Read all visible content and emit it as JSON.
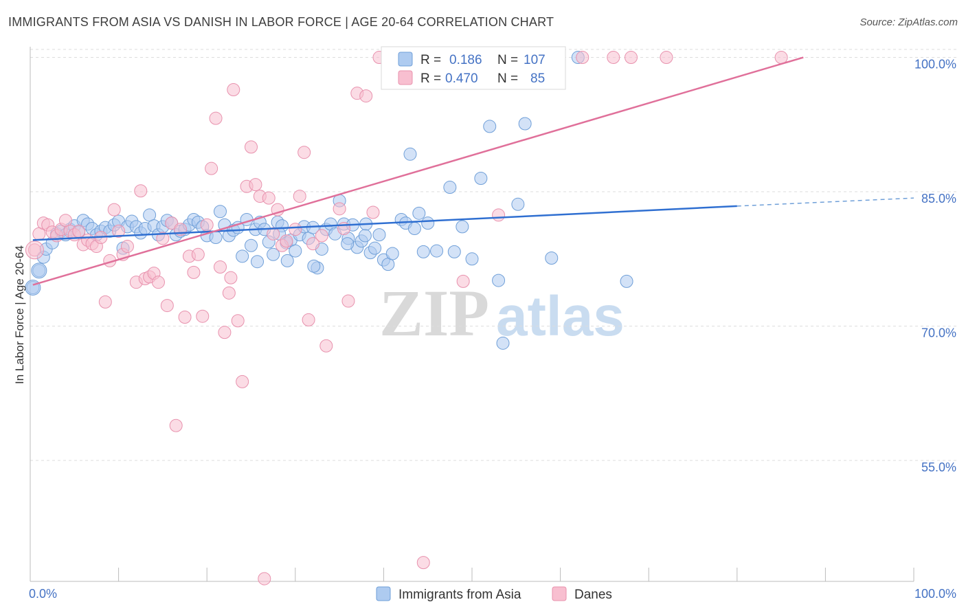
{
  "title": "IMMIGRANTS FROM ASIA VS DANISH IN LABOR FORCE | AGE 20-64 CORRELATION CHART",
  "source": "Source: ZipAtlas.com",
  "watermark": {
    "zip": "ZIP",
    "atlas": "atlas"
  },
  "legend": {
    "r_label": "R =",
    "n_label": "N =",
    "series": [
      {
        "r": "0.186",
        "n": "107",
        "fill": "#aecbf0",
        "stroke": "#6f9fd8"
      },
      {
        "r": "0.470",
        "n": "85",
        "fill": "#f8bfd0",
        "stroke": "#e891ad"
      }
    ]
  },
  "bottom_legend": [
    "Immigrants from Asia",
    "Danes"
  ],
  "chart_data": {
    "type": "scatter",
    "title": "IMMIGRANTS FROM ASIA VS DANISH IN LABOR FORCE | AGE 20-64 CORRELATION CHART",
    "xlabel": "",
    "ylabel": "In Labor Force | Age 20-64",
    "xlim": [
      0,
      100
    ],
    "ylim": [
      41.5,
      101.5
    ],
    "x_tick_labels": [
      "0.0%",
      "100.0%"
    ],
    "y_ticks": [
      55,
      70,
      85,
      100
    ],
    "y_tick_labels": [
      "55.0%",
      "70.0%",
      "85.0%",
      "100.0%"
    ],
    "grid": true,
    "legend_position": "top-center",
    "series": [
      {
        "name": "Immigrants from Asia",
        "color": "#6f9fd8",
        "fill": "#aecbf0",
        "trend": {
          "x0": 0.3,
          "y0": 79.6,
          "x1": 80,
          "y1": 83.4,
          "dash_to": 100,
          "dash_y": 84.3
        },
        "points": [
          [
            0.3,
            74.3
          ],
          [
            1,
            76.2
          ],
          [
            1.5,
            77.7
          ],
          [
            1.8,
            78.6
          ],
          [
            2.5,
            79.3
          ],
          [
            3,
            80.3
          ],
          [
            3.5,
            80.6
          ],
          [
            4,
            80.2
          ],
          [
            4.5,
            80.8
          ],
          [
            5,
            81.2
          ],
          [
            5.5,
            80.5
          ],
          [
            6,
            81.8
          ],
          [
            6.5,
            81.4
          ],
          [
            7,
            80.9
          ],
          [
            7.5,
            80.2
          ],
          [
            8,
            80.6
          ],
          [
            8.5,
            81
          ],
          [
            9,
            80.6
          ],
          [
            9.5,
            81.3
          ],
          [
            10,
            81.7
          ],
          [
            10.5,
            78.7
          ],
          [
            11,
            81.1
          ],
          [
            11.5,
            81.7
          ],
          [
            12,
            81.1
          ],
          [
            12.5,
            80.4
          ],
          [
            13,
            80.9
          ],
          [
            13.5,
            82.4
          ],
          [
            14,
            81.2
          ],
          [
            14.5,
            80.2
          ],
          [
            15,
            81.1
          ],
          [
            15.5,
            81.8
          ],
          [
            16,
            81.5
          ],
          [
            16.5,
            80.2
          ],
          [
            17,
            80.6
          ],
          [
            17.5,
            80.8
          ],
          [
            18,
            81.3
          ],
          [
            18.5,
            81.9
          ],
          [
            19,
            81.6
          ],
          [
            19.5,
            81.1
          ],
          [
            20,
            80.1
          ],
          [
            21,
            79.9
          ],
          [
            21.5,
            82.8
          ],
          [
            22,
            81.3
          ],
          [
            22.5,
            80.1
          ],
          [
            23,
            80.7
          ],
          [
            23.5,
            81
          ],
          [
            24,
            77.8
          ],
          [
            24.5,
            81.9
          ],
          [
            25,
            79
          ],
          [
            25.5,
            80.8
          ],
          [
            26,
            81.6
          ],
          [
            26.5,
            80.8
          ],
          [
            27,
            79.4
          ],
          [
            27.5,
            78
          ],
          [
            28,
            81.6
          ],
          [
            28.5,
            81.2
          ],
          [
            29,
            79.3
          ],
          [
            29.5,
            79.6
          ],
          [
            30,
            78.4
          ],
          [
            30.5,
            80.2
          ],
          [
            31,
            81.1
          ],
          [
            31.5,
            79.8
          ],
          [
            32,
            81
          ],
          [
            32.5,
            76.5
          ],
          [
            33,
            78.6
          ],
          [
            33.5,
            80.8
          ],
          [
            34,
            81.4
          ],
          [
            34.5,
            80.3
          ],
          [
            35,
            84
          ],
          [
            35.5,
            81.4
          ],
          [
            36,
            79.8
          ],
          [
            36.5,
            81.3
          ],
          [
            37,
            78.8
          ],
          [
            37.5,
            79.5
          ],
          [
            38,
            81.4
          ],
          [
            38.5,
            78.2
          ],
          [
            39,
            78.7
          ],
          [
            39.5,
            80.2
          ],
          [
            40,
            77.4
          ],
          [
            40.5,
            76.9
          ],
          [
            41,
            78.1
          ],
          [
            42,
            81.9
          ],
          [
            42.5,
            81.5
          ],
          [
            43,
            89.2
          ],
          [
            43.5,
            80.9
          ],
          [
            44,
            82.6
          ],
          [
            45,
            81.5
          ],
          [
            46,
            78.4
          ],
          [
            47.5,
            85.5
          ],
          [
            48,
            78.3
          ],
          [
            50,
            77.5
          ],
          [
            51,
            86.5
          ],
          [
            52,
            92.3
          ],
          [
            53,
            75.1
          ],
          [
            53.5,
            68.1
          ],
          [
            56,
            92.6
          ],
          [
            59,
            77.6
          ],
          [
            62,
            100
          ],
          [
            67.5,
            75
          ],
          [
            25.7,
            77.2
          ],
          [
            29.1,
            77.3
          ],
          [
            35.9,
            79.2
          ],
          [
            32.1,
            76.7
          ],
          [
            48.9,
            81.1
          ],
          [
            55.2,
            83.6
          ],
          [
            44.5,
            78.3
          ],
          [
            37.9,
            80.1
          ],
          [
            28.2,
            80.3
          ]
        ]
      },
      {
        "name": "Danes",
        "color": "#e891ad",
        "fill": "#f8bfd0",
        "trend": {
          "x0": 0.3,
          "y0": 74.6,
          "x1": 87.5,
          "y1": 100
        },
        "points": [
          [
            0.5,
            78.5
          ],
          [
            1,
            80.3
          ],
          [
            1.5,
            81.5
          ],
          [
            2,
            81.3
          ],
          [
            2.5,
            80.5
          ],
          [
            3,
            80.1
          ],
          [
            3.5,
            80.8
          ],
          [
            4,
            81.8
          ],
          [
            4.5,
            80.6
          ],
          [
            5,
            80.2
          ],
          [
            5.5,
            80.6
          ],
          [
            6,
            79.1
          ],
          [
            6.5,
            79.6
          ],
          [
            7,
            79.2
          ],
          [
            7.5,
            78.9
          ],
          [
            8,
            79.9
          ],
          [
            8.5,
            72.7
          ],
          [
            9,
            77.3
          ],
          [
            9.5,
            83
          ],
          [
            10,
            80.6
          ],
          [
            10.5,
            78
          ],
          [
            11,
            78.9
          ],
          [
            12,
            74.9
          ],
          [
            12.5,
            85.1
          ],
          [
            13,
            75.3
          ],
          [
            13.5,
            75.5
          ],
          [
            14,
            75.9
          ],
          [
            14.5,
            74.9
          ],
          [
            15,
            79.8
          ],
          [
            15.5,
            72.3
          ],
          [
            16,
            81.5
          ],
          [
            16.5,
            58.9
          ],
          [
            17,
            80.8
          ],
          [
            17.5,
            71
          ],
          [
            18,
            77.8
          ],
          [
            18.5,
            76
          ],
          [
            19,
            78
          ],
          [
            19.5,
            71.1
          ],
          [
            20,
            81.3
          ],
          [
            20.5,
            87.6
          ],
          [
            21,
            93.2
          ],
          [
            21.5,
            76.6
          ],
          [
            22,
            69.3
          ],
          [
            22.5,
            73.7
          ],
          [
            23,
            96.4
          ],
          [
            23.5,
            70.6
          ],
          [
            24,
            63.8
          ],
          [
            24.5,
            85.6
          ],
          [
            25,
            90
          ],
          [
            25.5,
            85.8
          ],
          [
            26,
            84.5
          ],
          [
            26.5,
            41.8
          ],
          [
            27,
            84.3
          ],
          [
            27.5,
            80.3
          ],
          [
            28,
            83
          ],
          [
            28.5,
            79
          ],
          [
            29,
            79.5
          ],
          [
            30,
            80.8
          ],
          [
            30.5,
            84.5
          ],
          [
            31,
            89.4
          ],
          [
            31.5,
            70.7
          ],
          [
            32,
            79.2
          ],
          [
            33,
            80.1
          ],
          [
            33.5,
            67.8
          ],
          [
            35,
            83.1
          ],
          [
            35.5,
            80.9
          ],
          [
            36,
            72.8
          ],
          [
            37,
            96
          ],
          [
            38,
            95.7
          ],
          [
            39.5,
            100
          ],
          [
            41,
            99.5
          ],
          [
            44.5,
            43.6
          ],
          [
            47,
            100
          ],
          [
            49,
            75
          ],
          [
            51,
            100
          ],
          [
            53,
            82.4
          ],
          [
            58,
            100
          ],
          [
            59,
            100
          ],
          [
            62.5,
            100
          ],
          [
            66,
            100
          ],
          [
            68,
            100
          ],
          [
            72,
            100
          ],
          [
            85,
            100
          ],
          [
            38.8,
            82.7
          ],
          [
            22.7,
            75.4
          ]
        ]
      }
    ]
  }
}
